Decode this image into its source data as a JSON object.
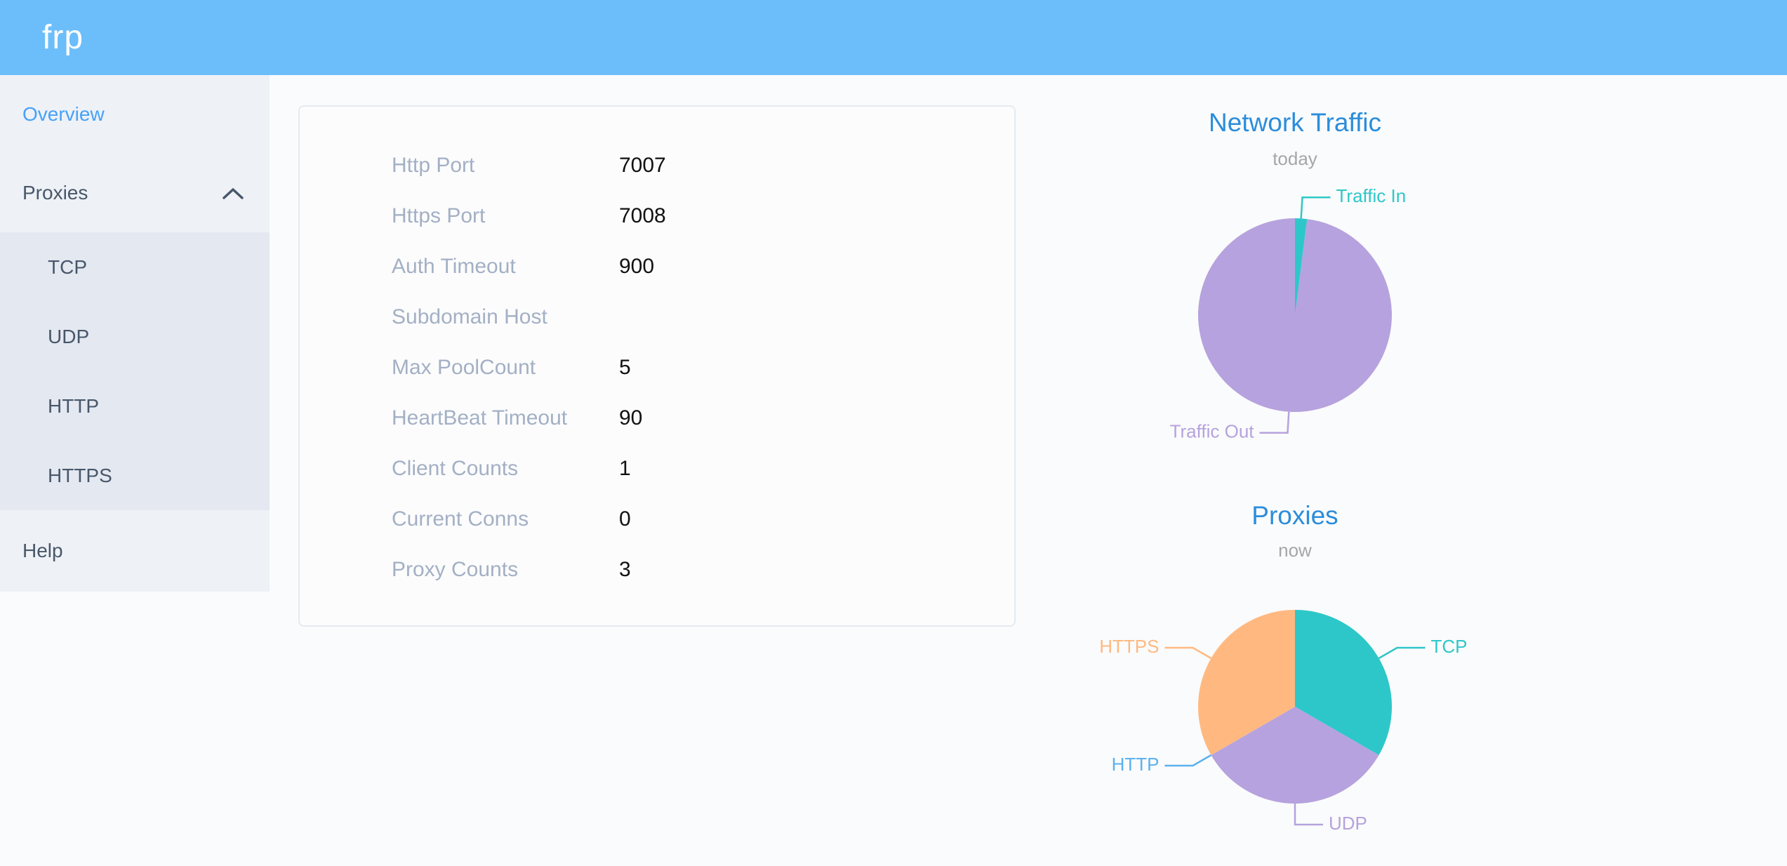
{
  "header": {
    "logo_text": "frp"
  },
  "colors": {
    "header_bg": "#6cbefa",
    "menu_active": "#47a1f8",
    "menu_text": "#48576a",
    "chart_title": "#2b8ddb",
    "teal": "#2ec7c9",
    "purple": "#b6a2de",
    "blue": "#5ab1ef",
    "orange": "#ffb980"
  },
  "sidebar": {
    "items": [
      {
        "label": "Overview",
        "active": true
      },
      {
        "label": "Proxies",
        "expanded": true,
        "chevron_icon": "chevron-up",
        "children": [
          "TCP",
          "UDP",
          "HTTP",
          "HTTPS"
        ]
      },
      {
        "label": "Help",
        "active": false
      }
    ]
  },
  "overview": {
    "rows": [
      {
        "label": "Http Port",
        "value": "7007"
      },
      {
        "label": "Https Port",
        "value": "7008"
      },
      {
        "label": "Auth Timeout",
        "value": "900"
      },
      {
        "label": "Subdomain Host",
        "value": ""
      },
      {
        "label": "Max PoolCount",
        "value": "5"
      },
      {
        "label": "HeartBeat Timeout",
        "value": "90"
      },
      {
        "label": "Client Counts",
        "value": "1"
      },
      {
        "label": "Current Conns",
        "value": "0"
      },
      {
        "label": "Proxy Counts",
        "value": "3"
      }
    ]
  },
  "chart_data": [
    {
      "type": "pie",
      "title": "Network Traffic",
      "subtitle": "today",
      "labels": "outside",
      "label_line": true,
      "legend": "none",
      "start_angle_deg": 90,
      "series": [
        {
          "name": "Traffic In",
          "value": 2,
          "color": "#2ec7c9"
        },
        {
          "name": "Traffic Out",
          "value": 98,
          "color": "#b6a2de"
        }
      ]
    },
    {
      "type": "pie",
      "title": "Proxies",
      "subtitle": "now",
      "labels": "outside",
      "label_line": true,
      "legend": "none",
      "start_angle_deg": 90,
      "series": [
        {
          "name": "TCP",
          "value": 1,
          "color": "#2ec7c9"
        },
        {
          "name": "UDP",
          "value": 1,
          "color": "#b6a2de"
        },
        {
          "name": "HTTP",
          "value": 0,
          "color": "#5ab1ef"
        },
        {
          "name": "HTTPS",
          "value": 1,
          "color": "#ffb980"
        }
      ]
    }
  ]
}
